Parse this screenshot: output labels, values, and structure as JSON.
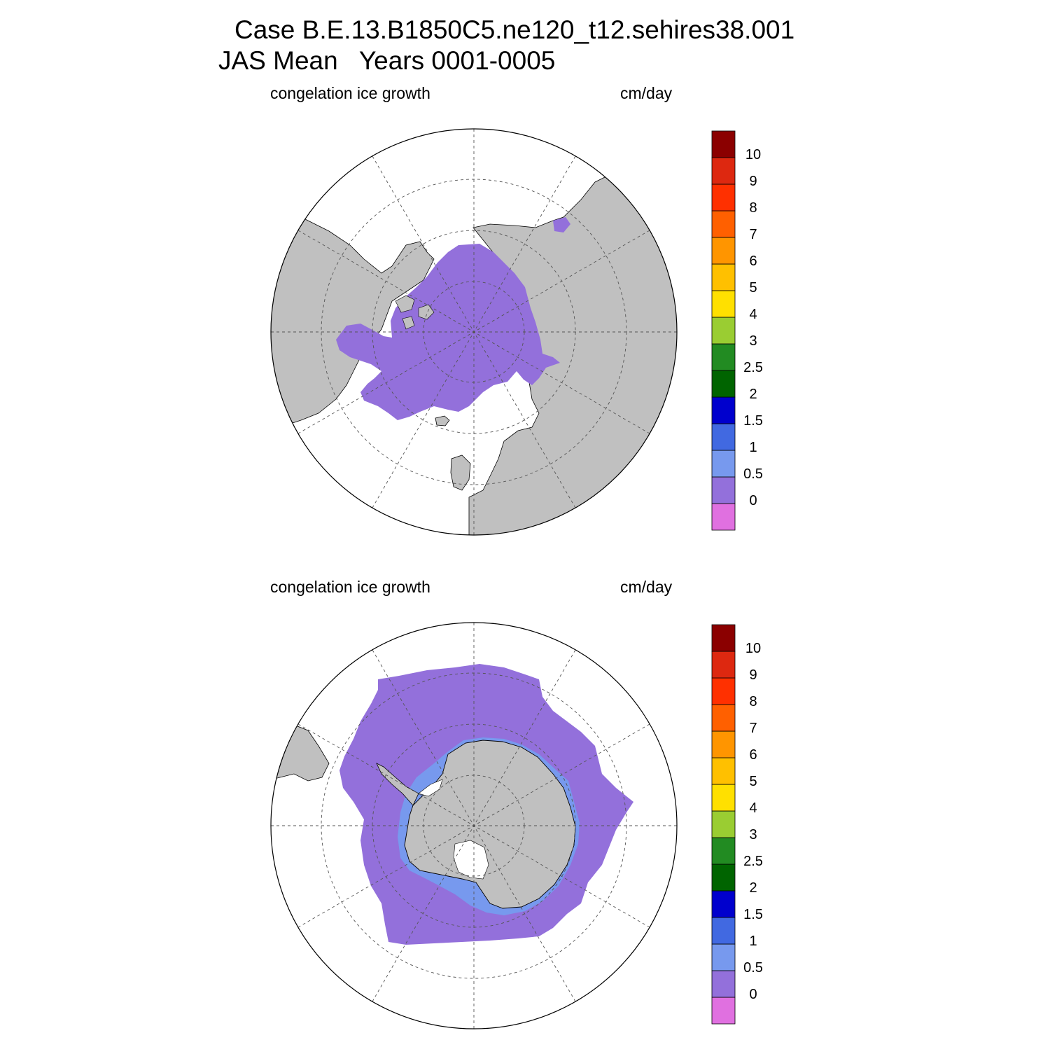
{
  "title": {
    "line1": "Case B.E.13.B1850C5.ne120_t12.sehires38.001",
    "line2": "JAS Mean   Years 0001-0005"
  },
  "colorbar": {
    "levels": [
      "0",
      "0.5",
      "1",
      "1.5",
      "2",
      "2.5",
      "3",
      "4",
      "5",
      "6",
      "7",
      "8",
      "9",
      "10"
    ],
    "colors": [
      "#e070e0",
      "#9370db",
      "#7799ee",
      "#4169e1",
      "#0000cd",
      "#006400",
      "#228b22",
      "#9acd32",
      "#ffe000",
      "#ffc000",
      "#ff9500",
      "#ff6000",
      "#ff3000",
      "#dd2810",
      "#8b0000"
    ]
  },
  "colors": {
    "land": "#c0c0c0",
    "ice_low": "#9370db",
    "ocean": "#ffffff"
  },
  "panels": [
    {
      "id": "north",
      "hemisphere": "Northern",
      "left_label": "congelation ice growth",
      "right_label": "cm/day"
    },
    {
      "id": "south",
      "hemisphere": "Southern",
      "left_label": "congelation ice growth",
      "right_label": "cm/day"
    }
  ]
}
